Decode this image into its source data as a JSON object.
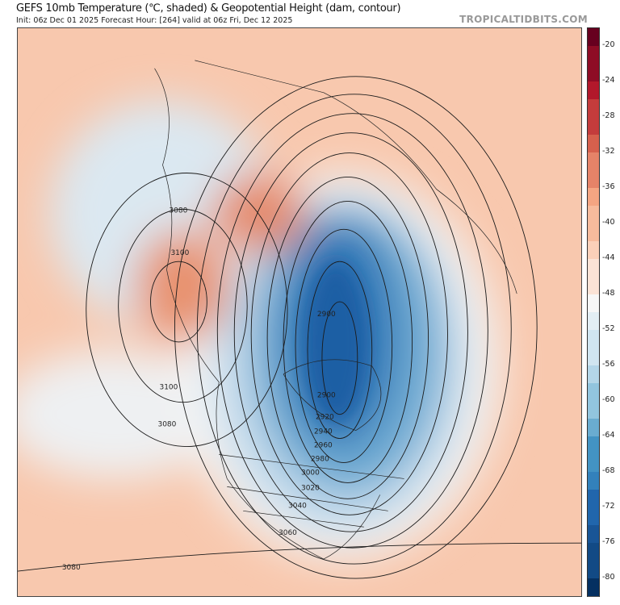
{
  "header": {
    "title": "GEFS 10mb Temperature (℃, shaded) & Geopotential Height (dam, contour)",
    "subtitle": "Init: 06z Dec 01 2025   Forecast Hour: [264]   valid at 06z Fri, Dec 12 2025",
    "brand": "TROPICALTIDBITS.COM"
  },
  "colorbar": {
    "labels": [
      "-20",
      "-24",
      "-28",
      "-32",
      "-36",
      "-40",
      "-44",
      "-48",
      "-52",
      "-56",
      "-60",
      "-64",
      "-68",
      "-72",
      "-76",
      "-80"
    ],
    "colors": [
      "#67001f",
      "#8e0c25",
      "#b2182b",
      "#c43c3c",
      "#d6604d",
      "#e58368",
      "#f4a582",
      "#f7bb9c",
      "#fbd0b9",
      "#fbe3d6",
      "#f7f7f7",
      "#e3eef4",
      "#d1e5f0",
      "#b4d6e8",
      "#92c5de",
      "#6aacd0",
      "#4393c3",
      "#3381bb",
      "#2166ac",
      "#195596",
      "#124a85",
      "#053061"
    ]
  },
  "contour_labels": [
    {
      "text": "3080"
    },
    {
      "text": "3100"
    },
    {
      "text": "3100"
    },
    {
      "text": "3080"
    },
    {
      "text": "3080"
    },
    {
      "text": "2900"
    },
    {
      "text": "2900"
    },
    {
      "text": "2920"
    },
    {
      "text": "2940"
    },
    {
      "text": "2960"
    },
    {
      "text": "2980"
    },
    {
      "text": "3000"
    },
    {
      "text": "3020"
    },
    {
      "text": "3040"
    },
    {
      "text": "3060"
    }
  ]
}
